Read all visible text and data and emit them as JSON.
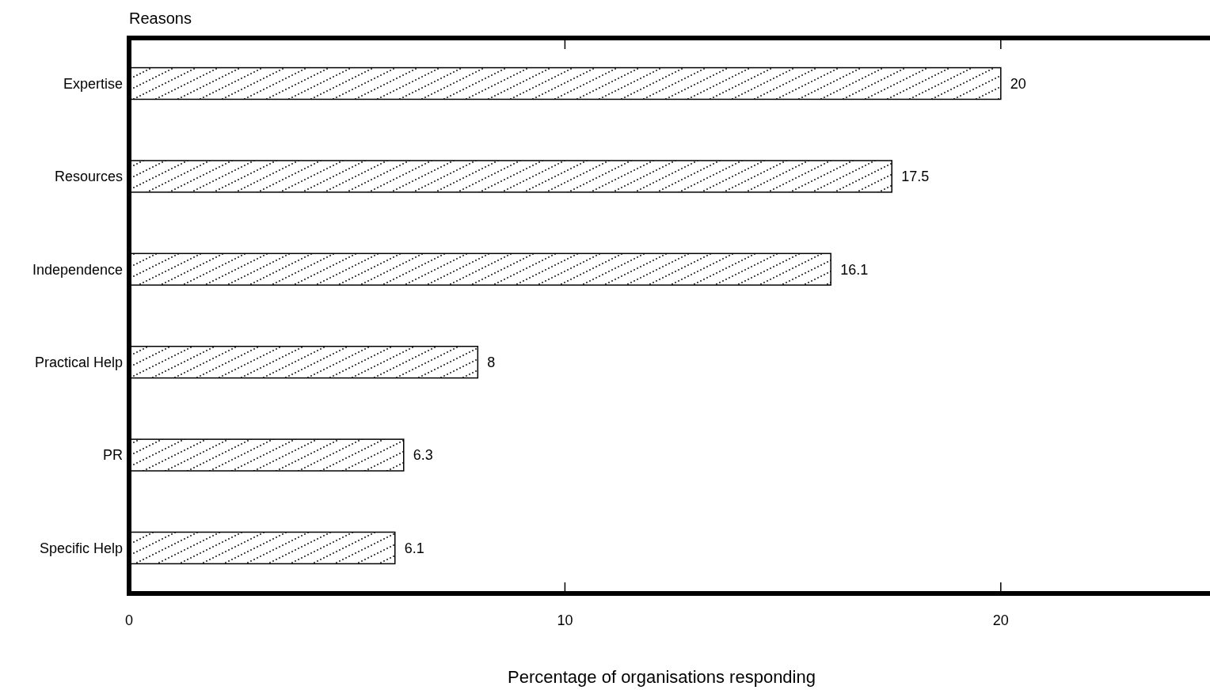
{
  "chart_data": {
    "type": "bar",
    "orientation": "horizontal",
    "ylabel": "Reasons",
    "xlabel": "Percentage of organisations responding",
    "categories": [
      "Expertise",
      "Resources",
      "Independence",
      "Practical Help",
      "PR",
      "Specific Help"
    ],
    "values": [
      20,
      17.5,
      16.1,
      8,
      6.3,
      6.1
    ],
    "color": "#ffffff",
    "xlim": [
      0,
      24.8
    ],
    "xticks": [
      0,
      10,
      20
    ],
    "data_labels": true
  }
}
